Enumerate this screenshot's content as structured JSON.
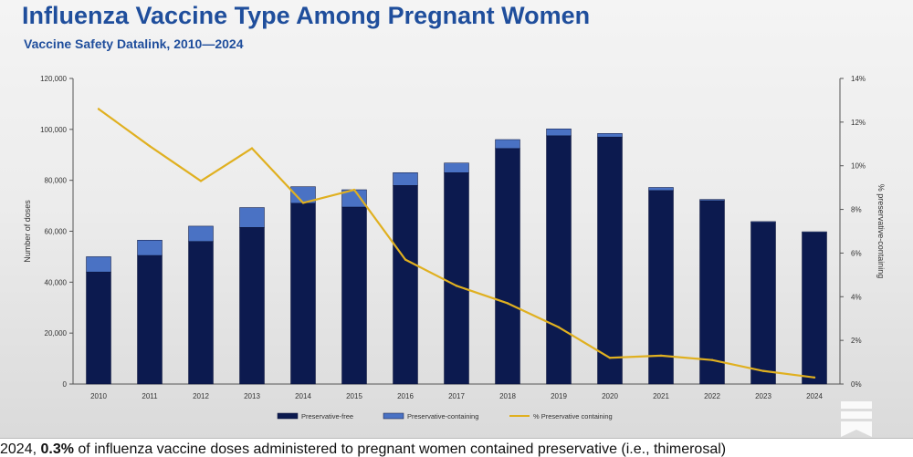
{
  "header": {
    "title": "Influenza Vaccine Type Among Pregnant Women",
    "subtitle": "Vaccine Safety Datalink, 2010—2024"
  },
  "caption": {
    "prefix": "2024, ",
    "highlight": "0.3%",
    "rest": " of influenza vaccine doses administered to pregnant women contained preservative (i.e., thimerosal)"
  },
  "overlay": {
    "icon": "bookmark-icon"
  },
  "chart_data": {
    "type": "bar",
    "stacked": true,
    "categories": [
      "2010",
      "2011",
      "2012",
      "2013",
      "2014",
      "2015",
      "2016",
      "2017",
      "2018",
      "2019",
      "2020",
      "2021",
      "2022",
      "2023",
      "2024"
    ],
    "series": [
      {
        "name": "Preservative-free",
        "kind": "bar",
        "color": "#0c1a4f",
        "values": [
          44000,
          50500,
          56000,
          61500,
          71000,
          69500,
          78000,
          83000,
          92500,
          97500,
          97000,
          76000,
          72000,
          63500,
          59500
        ]
      },
      {
        "name": "Preservative-containing",
        "kind": "bar",
        "color": "#4a72c4",
        "values": [
          6000,
          6000,
          6000,
          7800,
          6500,
          6800,
          5000,
          3800,
          3500,
          2700,
          1400,
          1200,
          500,
          300,
          300
        ]
      },
      {
        "name": "% Preservative containing",
        "kind": "line",
        "axis": "right",
        "color": "#e0b020",
        "values": [
          12.6,
          10.9,
          9.3,
          10.8,
          8.3,
          8.9,
          5.7,
          4.5,
          3.7,
          2.6,
          1.2,
          1.3,
          1.1,
          0.6,
          0.3
        ]
      }
    ],
    "ylabel": "Number of doses",
    "y2label": "% preservative-containing",
    "ylim": [
      0,
      120000
    ],
    "y2lim": [
      0,
      14
    ],
    "yticks": [
      "0",
      "20,000",
      "40,000",
      "60,000",
      "80,000",
      "100,000",
      "120,000"
    ],
    "y2ticks": [
      "0%",
      "2%",
      "4%",
      "6%",
      "8%",
      "10%",
      "12%",
      "14%"
    ],
    "legend_position": "bottom",
    "grid": false
  }
}
